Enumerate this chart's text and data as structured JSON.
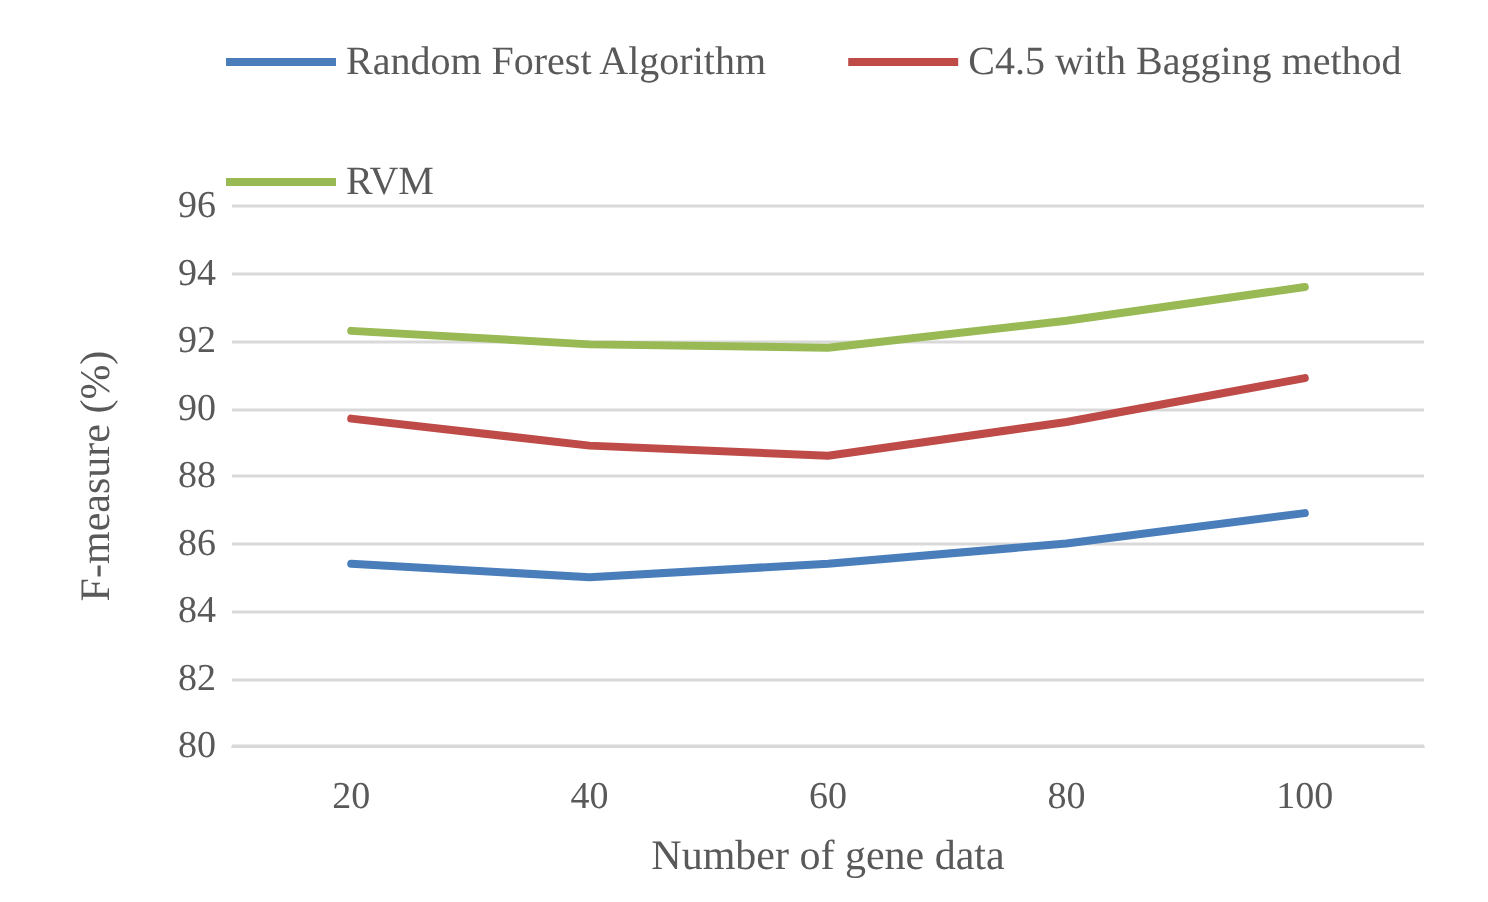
{
  "chart_data": {
    "type": "line",
    "xlabel": "Number of gene data",
    "ylabel": "F-measure (%)",
    "categories": [
      "20",
      "40",
      "60",
      "80",
      "100"
    ],
    "series": [
      {
        "name": "Random Forest Algorithm",
        "color": "#4a7ebb",
        "values": [
          85.4,
          85.0,
          85.4,
          86.0,
          86.9
        ]
      },
      {
        "name": "C4.5 with Bagging method",
        "color": "#be4b48",
        "values": [
          89.7,
          88.9,
          88.6,
          89.6,
          90.9
        ]
      },
      {
        "name": "RVM",
        "color": "#98b954",
        "values": [
          92.3,
          91.9,
          91.8,
          92.6,
          93.6
        ]
      }
    ],
    "ylim": [
      80,
      96
    ],
    "yticks": [
      80,
      82,
      84,
      86,
      88,
      90,
      92,
      94,
      96
    ],
    "grid": "y",
    "legend": "top",
    "marker": "none",
    "line_style": "solid"
  }
}
